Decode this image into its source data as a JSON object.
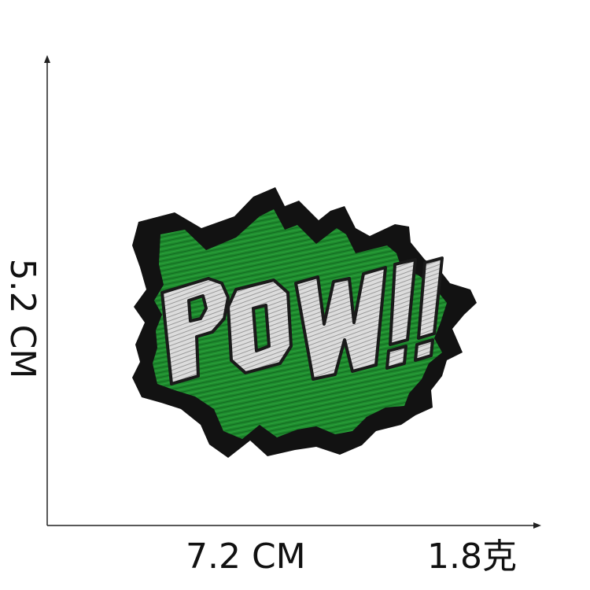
{
  "patch": {
    "text": "POW!!",
    "colors": {
      "outline": "#121212",
      "burst_green": "#1f8a2e",
      "letters": "#dcdcdc",
      "letter_outline": "#1a1a1a"
    }
  },
  "dimensions": {
    "height": "5.2 CM",
    "width": "7.2 CM",
    "weight": "1.8克"
  },
  "colors": {
    "axis": "#222222",
    "text": "#111111",
    "background": "#ffffff"
  }
}
